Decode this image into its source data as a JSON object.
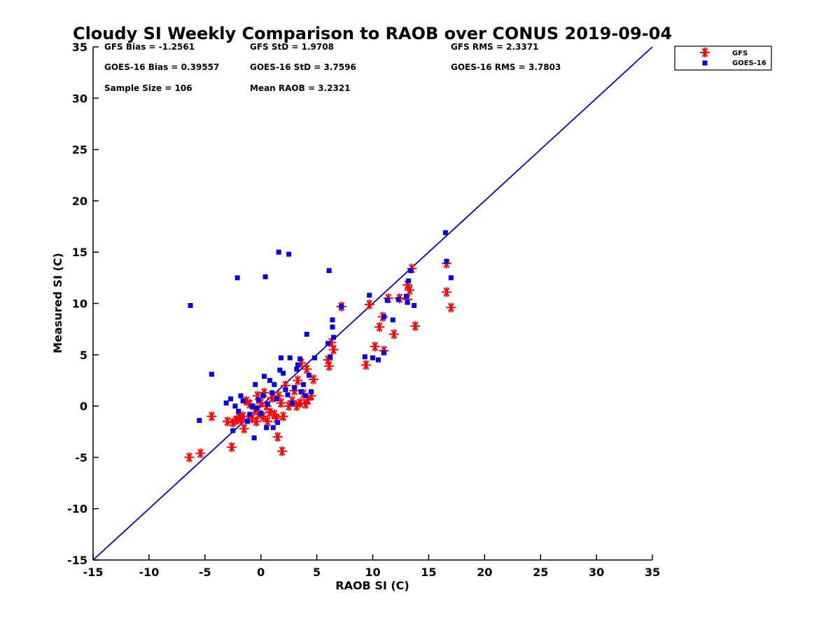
{
  "chart_data": {
    "type": "scatter",
    "title": "Cloudy SI Weekly Comparison to RAOB over CONUS 2019-09-04",
    "xlabel": "RAOB SI (C)",
    "ylabel": "Measured SI (C)",
    "xlim": [
      -15,
      35
    ],
    "ylim": [
      -15,
      35
    ],
    "xticks": [
      -15,
      -10,
      -5,
      0,
      5,
      10,
      15,
      20,
      25,
      30,
      35
    ],
    "yticks": [
      -15,
      -10,
      -5,
      0,
      5,
      10,
      15,
      20,
      25,
      30,
      35
    ],
    "grid": false,
    "legend_position": "top-right, outside plot",
    "reference_line": {
      "from": [
        -15,
        -15
      ],
      "to": [
        35,
        35
      ],
      "color": "#0000cc"
    },
    "stats": [
      "GFS Bias = -1.2561",
      "GFS StD = 1.9708",
      "GFS RMS = 2.3371",
      "GOES-16 Bias = 0.39557",
      "GOES-16 StD = 3.7596",
      "GOES-16 RMS = 3.7803",
      "Sample Size = 106",
      "Mean RAOB = 3.2321"
    ],
    "series": [
      {
        "name": "GFS",
        "color": "#ff0000",
        "marker": "asterisk",
        "points": [
          [
            -6.4,
            -5.0
          ],
          [
            -5.4,
            -4.6
          ],
          [
            -4.4,
            -1.0
          ],
          [
            -3.0,
            -1.5
          ],
          [
            -2.6,
            -4.0
          ],
          [
            -2.5,
            -1.6
          ],
          [
            -2.2,
            -1.4
          ],
          [
            -2.0,
            -1.0
          ],
          [
            -1.8,
            -1.3
          ],
          [
            -1.6,
            -1.0
          ],
          [
            -1.5,
            -2.2
          ],
          [
            -1.3,
            0.5
          ],
          [
            -1.0,
            0.2
          ],
          [
            -0.8,
            -1.2
          ],
          [
            -0.5,
            -0.3
          ],
          [
            -0.4,
            -1.5
          ],
          [
            -0.3,
            1.0
          ],
          [
            -0.2,
            -0.8
          ],
          [
            0.0,
            0.3
          ],
          [
            0.2,
            -1.0
          ],
          [
            0.3,
            1.3
          ],
          [
            0.5,
            0.0
          ],
          [
            0.6,
            -1.5
          ],
          [
            0.8,
            -0.6
          ],
          [
            1.0,
            0.8
          ],
          [
            1.2,
            -0.8
          ],
          [
            1.4,
            -1.2
          ],
          [
            1.5,
            -3.0
          ],
          [
            1.6,
            1.0
          ],
          [
            1.8,
            0.3
          ],
          [
            1.9,
            -4.4
          ],
          [
            2.0,
            -1.0
          ],
          [
            2.2,
            2.0
          ],
          [
            2.5,
            0.0
          ],
          [
            2.8,
            0.5
          ],
          [
            3.0,
            1.5
          ],
          [
            3.2,
            0.0
          ],
          [
            3.3,
            2.5
          ],
          [
            3.5,
            0.3
          ],
          [
            3.6,
            4.2
          ],
          [
            3.8,
            1.2
          ],
          [
            4.0,
            0.2
          ],
          [
            4.1,
            3.6
          ],
          [
            4.2,
            0.6
          ],
          [
            4.5,
            1.0
          ],
          [
            4.7,
            2.6
          ],
          [
            6.0,
            4.5
          ],
          [
            6.1,
            3.9
          ],
          [
            6.3,
            6.2
          ],
          [
            6.5,
            5.5
          ],
          [
            7.2,
            9.7
          ],
          [
            9.4,
            4.0
          ],
          [
            9.7,
            9.9
          ],
          [
            10.2,
            5.8
          ],
          [
            10.6,
            7.7
          ],
          [
            10.9,
            8.7
          ],
          [
            11.0,
            5.4
          ],
          [
            11.4,
            10.5
          ],
          [
            11.9,
            7.0
          ],
          [
            12.4,
            10.5
          ],
          [
            13.1,
            11.8
          ],
          [
            13.1,
            10.4
          ],
          [
            13.3,
            11.3
          ],
          [
            13.5,
            13.4
          ],
          [
            13.8,
            7.8
          ],
          [
            16.6,
            13.9
          ],
          [
            16.6,
            11.1
          ],
          [
            17.0,
            9.6
          ]
        ]
      },
      {
        "name": "GOES-16",
        "color": "#0000ee",
        "marker": "square",
        "points": [
          [
            -6.3,
            9.8
          ],
          [
            -5.5,
            -1.4
          ],
          [
            -4.4,
            3.1
          ],
          [
            -3.1,
            0.3
          ],
          [
            -2.7,
            0.7
          ],
          [
            -2.5,
            -2.4
          ],
          [
            -2.3,
            0.0
          ],
          [
            -2.1,
            12.5
          ],
          [
            -2.0,
            -0.5
          ],
          [
            -1.8,
            1.0
          ],
          [
            -1.6,
            0.5
          ],
          [
            -1.2,
            -1.5
          ],
          [
            -1.0,
            -0.8
          ],
          [
            -0.8,
            0.0
          ],
          [
            -0.6,
            -3.1
          ],
          [
            -0.5,
            2.1
          ],
          [
            -0.4,
            -0.2
          ],
          [
            -0.2,
            0.6
          ],
          [
            0.0,
            -0.7
          ],
          [
            0.2,
            1.0
          ],
          [
            0.3,
            2.9
          ],
          [
            0.4,
            12.6
          ],
          [
            0.5,
            -2.1
          ],
          [
            0.6,
            0.2
          ],
          [
            0.8,
            2.5
          ],
          [
            1.0,
            1.3
          ],
          [
            1.1,
            -2.1
          ],
          [
            1.2,
            2.1
          ],
          [
            1.4,
            0.7
          ],
          [
            1.5,
            -1.6
          ],
          [
            1.6,
            15.0
          ],
          [
            1.7,
            3.5
          ],
          [
            1.8,
            4.7
          ],
          [
            2.0,
            3.2
          ],
          [
            2.2,
            1.6
          ],
          [
            2.4,
            1.1
          ],
          [
            2.5,
            14.8
          ],
          [
            2.6,
            4.7
          ],
          [
            2.8,
            0.3
          ],
          [
            3.0,
            1.8
          ],
          [
            3.2,
            3.6
          ],
          [
            3.3,
            4.0
          ],
          [
            3.5,
            4.6
          ],
          [
            3.6,
            1.4
          ],
          [
            3.8,
            2.1
          ],
          [
            4.0,
            1.0
          ],
          [
            4.1,
            7.0
          ],
          [
            4.3,
            3.0
          ],
          [
            4.5,
            1.4
          ],
          [
            4.8,
            4.7
          ],
          [
            6.0,
            6.1
          ],
          [
            6.1,
            13.2
          ],
          [
            6.2,
            4.8
          ],
          [
            6.4,
            8.4
          ],
          [
            6.4,
            7.7
          ],
          [
            6.5,
            6.7
          ],
          [
            7.2,
            9.7
          ],
          [
            9.3,
            4.8
          ],
          [
            9.7,
            10.8
          ],
          [
            10.0,
            4.7
          ],
          [
            10.5,
            4.5
          ],
          [
            11.0,
            8.7
          ],
          [
            11.0,
            5.2
          ],
          [
            11.3,
            10.3
          ],
          [
            11.8,
            8.4
          ],
          [
            12.3,
            10.4
          ],
          [
            13.0,
            10.7
          ],
          [
            13.1,
            10.1
          ],
          [
            13.2,
            12.2
          ],
          [
            13.4,
            13.2
          ],
          [
            13.7,
            9.8
          ],
          [
            16.5,
            16.9
          ],
          [
            16.6,
            14.1
          ],
          [
            17.0,
            12.5
          ]
        ]
      }
    ]
  }
}
